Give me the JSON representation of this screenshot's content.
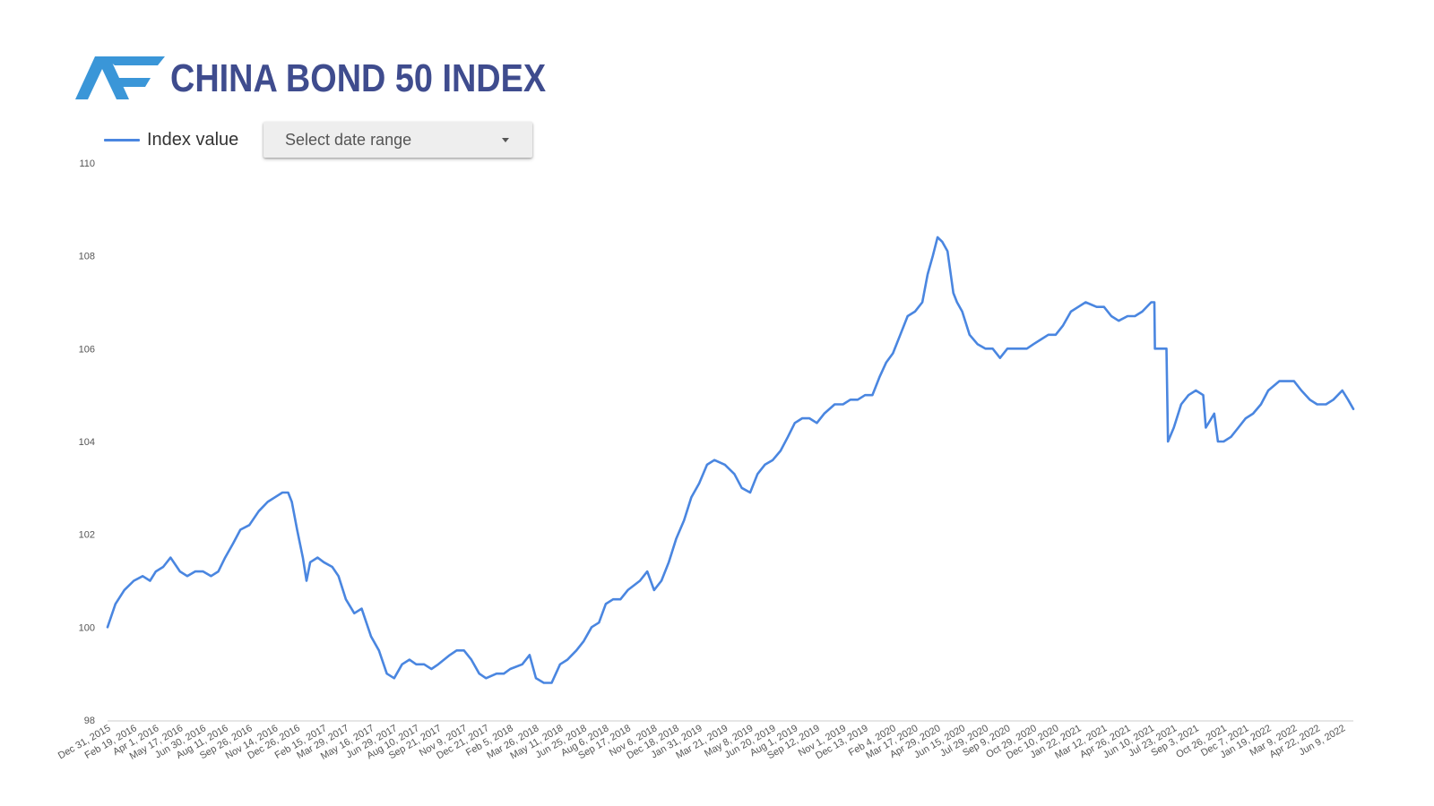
{
  "header": {
    "title": "CHINA BOND 50 INDEX",
    "title_color": "#3f4c8e",
    "logo_icon": "af-logo-icon",
    "logo_color": "#3a96d8"
  },
  "controls": {
    "date_range_label": "Select date range",
    "date_range_icon": "caret-down-icon"
  },
  "chart_data": {
    "type": "line",
    "legend_position": "top-left",
    "grid": false,
    "title": "",
    "xlabel": "",
    "ylabel": "",
    "ylim": [
      98,
      110
    ],
    "yticks": [
      "98",
      "100",
      "102",
      "104",
      "106",
      "108",
      "110"
    ],
    "xlim": [
      "2015-12-31",
      "2022-06-30"
    ],
    "xticks": [
      {
        "date": "2015-12-31",
        "label": "Dec 31, 2015"
      },
      {
        "date": "2016-02-19",
        "label": "Feb 19, 2016"
      },
      {
        "date": "2016-04-01",
        "label": "Apr 1, 2016"
      },
      {
        "date": "2016-05-17",
        "label": "May 17, 2016"
      },
      {
        "date": "2016-06-30",
        "label": "Jun 30, 2016"
      },
      {
        "date": "2016-08-11",
        "label": "Aug 11, 2016"
      },
      {
        "date": "2016-09-26",
        "label": "Sep 26, 2016"
      },
      {
        "date": "2016-11-14",
        "label": "Nov 14, 2016"
      },
      {
        "date": "2016-12-26",
        "label": "Dec 26, 2016"
      },
      {
        "date": "2017-02-15",
        "label": "Feb 15, 2017"
      },
      {
        "date": "2017-03-29",
        "label": "Mar 29, 2017"
      },
      {
        "date": "2017-05-16",
        "label": "May 16, 2017"
      },
      {
        "date": "2017-06-29",
        "label": "Jun 29, 2017"
      },
      {
        "date": "2017-08-10",
        "label": "Aug 10, 2017"
      },
      {
        "date": "2017-09-21",
        "label": "Sep 21, 2017"
      },
      {
        "date": "2017-11-09",
        "label": "Nov 9, 2017"
      },
      {
        "date": "2017-12-21",
        "label": "Dec 21, 2017"
      },
      {
        "date": "2018-02-05",
        "label": "Feb 5, 2018"
      },
      {
        "date": "2018-03-26",
        "label": "Mar 26, 2018"
      },
      {
        "date": "2018-05-11",
        "label": "May 11, 2018"
      },
      {
        "date": "2018-06-25",
        "label": "Jun 25, 2018"
      },
      {
        "date": "2018-08-06",
        "label": "Aug 6, 2018"
      },
      {
        "date": "2018-09-17",
        "label": "Sep 17, 2018"
      },
      {
        "date": "2018-11-06",
        "label": "Nov 6, 2018"
      },
      {
        "date": "2018-12-18",
        "label": "Dec 18, 2018"
      },
      {
        "date": "2019-01-31",
        "label": "Jan 31, 2019"
      },
      {
        "date": "2019-03-21",
        "label": "Mar 21, 2019"
      },
      {
        "date": "2019-05-08",
        "label": "May 8, 2019"
      },
      {
        "date": "2019-06-20",
        "label": "Jun 20, 2019"
      },
      {
        "date": "2019-08-01",
        "label": "Aug 1, 2019"
      },
      {
        "date": "2019-09-12",
        "label": "Sep 12, 2019"
      },
      {
        "date": "2019-11-01",
        "label": "Nov 1, 2019"
      },
      {
        "date": "2019-12-13",
        "label": "Dec 13, 2019"
      },
      {
        "date": "2020-02-04",
        "label": "Feb 4, 2020"
      },
      {
        "date": "2020-03-17",
        "label": "Mar 17, 2020"
      },
      {
        "date": "2020-04-29",
        "label": "Apr 29, 2020"
      },
      {
        "date": "2020-06-15",
        "label": "Jun 15, 2020"
      },
      {
        "date": "2020-07-29",
        "label": "Jul 29, 2020"
      },
      {
        "date": "2020-09-09",
        "label": "Sep 9, 2020"
      },
      {
        "date": "2020-10-29",
        "label": "Oct 29, 2020"
      },
      {
        "date": "2020-12-10",
        "label": "Dec 10, 2020"
      },
      {
        "date": "2021-01-22",
        "label": "Jan 22, 2021"
      },
      {
        "date": "2021-03-12",
        "label": "Mar 12, 2021"
      },
      {
        "date": "2021-04-26",
        "label": "Apr 26, 2021"
      },
      {
        "date": "2021-06-10",
        "label": "Jun 10, 2021"
      },
      {
        "date": "2021-07-23",
        "label": "Jul 23, 2021"
      },
      {
        "date": "2021-09-03",
        "label": "Sep 3, 2021"
      },
      {
        "date": "2021-10-26",
        "label": "Oct 26, 2021"
      },
      {
        "date": "2021-12-07",
        "label": "Dec 7, 2021"
      },
      {
        "date": "2022-01-19",
        "label": "Jan 19, 2022"
      },
      {
        "date": "2022-03-09",
        "label": "Mar 9, 2022"
      },
      {
        "date": "2022-04-22",
        "label": "Apr 22, 2022"
      },
      {
        "date": "2022-06-09",
        "label": "Jun 9, 2022"
      }
    ],
    "series": [
      {
        "name": "Index value",
        "color": "#4a86e0",
        "points": [
          [
            "2015-12-31",
            100.0
          ],
          [
            "2016-01-15",
            100.5
          ],
          [
            "2016-02-01",
            100.8
          ],
          [
            "2016-02-19",
            101.0
          ],
          [
            "2016-03-07",
            101.1
          ],
          [
            "2016-03-21",
            101.0
          ],
          [
            "2016-04-01",
            101.2
          ],
          [
            "2016-04-15",
            101.3
          ],
          [
            "2016-04-29",
            101.5
          ],
          [
            "2016-05-17",
            101.2
          ],
          [
            "2016-05-31",
            101.1
          ],
          [
            "2016-06-15",
            101.2
          ],
          [
            "2016-06-30",
            101.2
          ],
          [
            "2016-07-15",
            101.1
          ],
          [
            "2016-07-29",
            101.2
          ],
          [
            "2016-08-11",
            101.5
          ],
          [
            "2016-08-26",
            101.8
          ],
          [
            "2016-09-09",
            102.1
          ],
          [
            "2016-09-26",
            102.2
          ],
          [
            "2016-10-14",
            102.5
          ],
          [
            "2016-10-31",
            102.7
          ],
          [
            "2016-11-14",
            102.8
          ],
          [
            "2016-11-28",
            102.9
          ],
          [
            "2016-12-09",
            102.9
          ],
          [
            "2016-12-16",
            102.7
          ],
          [
            "2016-12-26",
            102.1
          ],
          [
            "2017-01-06",
            101.5
          ],
          [
            "2017-01-13",
            101.0
          ],
          [
            "2017-01-20",
            101.4
          ],
          [
            "2017-02-03",
            101.5
          ],
          [
            "2017-02-15",
            101.4
          ],
          [
            "2017-03-03",
            101.3
          ],
          [
            "2017-03-15",
            101.1
          ],
          [
            "2017-03-29",
            100.6
          ],
          [
            "2017-04-14",
            100.3
          ],
          [
            "2017-04-28",
            100.4
          ],
          [
            "2017-05-16",
            99.8
          ],
          [
            "2017-05-31",
            99.5
          ],
          [
            "2017-06-15",
            99.0
          ],
          [
            "2017-06-29",
            98.9
          ],
          [
            "2017-07-14",
            99.2
          ],
          [
            "2017-07-28",
            99.3
          ],
          [
            "2017-08-10",
            99.2
          ],
          [
            "2017-08-25",
            99.2
          ],
          [
            "2017-09-08",
            99.1
          ],
          [
            "2017-09-21",
            99.2
          ],
          [
            "2017-10-13",
            99.4
          ],
          [
            "2017-10-26",
            99.5
          ],
          [
            "2017-11-09",
            99.5
          ],
          [
            "2017-11-23",
            99.3
          ],
          [
            "2017-12-08",
            99.0
          ],
          [
            "2017-12-21",
            98.9
          ],
          [
            "2018-01-10",
            99.0
          ],
          [
            "2018-01-24",
            99.0
          ],
          [
            "2018-02-05",
            99.1
          ],
          [
            "2018-02-28",
            99.2
          ],
          [
            "2018-03-14",
            99.4
          ],
          [
            "2018-03-26",
            98.9
          ],
          [
            "2018-04-10",
            98.8
          ],
          [
            "2018-04-25",
            98.8
          ],
          [
            "2018-05-11",
            99.2
          ],
          [
            "2018-05-25",
            99.3
          ],
          [
            "2018-06-11",
            99.5
          ],
          [
            "2018-06-25",
            99.7
          ],
          [
            "2018-07-10",
            100.0
          ],
          [
            "2018-07-24",
            100.1
          ],
          [
            "2018-08-06",
            100.5
          ],
          [
            "2018-08-20",
            100.6
          ],
          [
            "2018-09-03",
            100.6
          ],
          [
            "2018-09-17",
            100.8
          ],
          [
            "2018-10-10",
            101.0
          ],
          [
            "2018-10-24",
            101.2
          ],
          [
            "2018-11-06",
            100.8
          ],
          [
            "2018-11-20",
            101.0
          ],
          [
            "2018-12-04",
            101.4
          ],
          [
            "2018-12-18",
            101.9
          ],
          [
            "2019-01-02",
            102.3
          ],
          [
            "2019-01-16",
            102.8
          ],
          [
            "2019-01-31",
            103.1
          ],
          [
            "2019-02-15",
            103.5
          ],
          [
            "2019-03-01",
            103.6
          ],
          [
            "2019-03-21",
            103.5
          ],
          [
            "2019-04-08",
            103.3
          ],
          [
            "2019-04-22",
            103.0
          ],
          [
            "2019-05-08",
            102.9
          ],
          [
            "2019-05-22",
            103.3
          ],
          [
            "2019-06-05",
            103.5
          ],
          [
            "2019-06-20",
            103.6
          ],
          [
            "2019-07-05",
            103.8
          ],
          [
            "2019-07-19",
            104.1
          ],
          [
            "2019-08-01",
            104.4
          ],
          [
            "2019-08-15",
            104.5
          ],
          [
            "2019-08-29",
            104.5
          ],
          [
            "2019-09-12",
            104.4
          ],
          [
            "2019-09-26",
            104.6
          ],
          [
            "2019-10-16",
            104.8
          ],
          [
            "2019-11-01",
            104.8
          ],
          [
            "2019-11-15",
            104.9
          ],
          [
            "2019-11-29",
            104.9
          ],
          [
            "2019-12-13",
            105.0
          ],
          [
            "2019-12-27",
            105.0
          ],
          [
            "2020-01-10",
            105.4
          ],
          [
            "2020-01-22",
            105.7
          ],
          [
            "2020-02-04",
            105.9
          ],
          [
            "2020-02-18",
            106.3
          ],
          [
            "2020-03-03",
            106.7
          ],
          [
            "2020-03-17",
            106.8
          ],
          [
            "2020-03-31",
            107.0
          ],
          [
            "2020-04-10",
            107.6
          ],
          [
            "2020-04-20",
            108.0
          ],
          [
            "2020-04-29",
            108.4
          ],
          [
            "2020-05-08",
            108.3
          ],
          [
            "2020-05-18",
            108.1
          ],
          [
            "2020-05-29",
            107.2
          ],
          [
            "2020-06-05",
            107.0
          ],
          [
            "2020-06-15",
            106.8
          ],
          [
            "2020-06-29",
            106.3
          ],
          [
            "2020-07-14",
            106.1
          ],
          [
            "2020-07-29",
            106.0
          ],
          [
            "2020-08-12",
            106.0
          ],
          [
            "2020-08-26",
            105.8
          ],
          [
            "2020-09-09",
            106.0
          ],
          [
            "2020-09-23",
            106.0
          ],
          [
            "2020-10-16",
            106.0
          ],
          [
            "2020-10-29",
            106.1
          ],
          [
            "2020-11-12",
            106.2
          ],
          [
            "2020-11-26",
            106.3
          ],
          [
            "2020-12-10",
            106.3
          ],
          [
            "2020-12-24",
            106.5
          ],
          [
            "2021-01-08",
            106.8
          ],
          [
            "2021-01-22",
            106.9
          ],
          [
            "2021-02-05",
            107.0
          ],
          [
            "2021-02-26",
            106.9
          ],
          [
            "2021-03-12",
            106.9
          ],
          [
            "2021-03-26",
            106.7
          ],
          [
            "2021-04-09",
            106.6
          ],
          [
            "2021-04-26",
            106.7
          ],
          [
            "2021-05-10",
            106.7
          ],
          [
            "2021-05-24",
            106.8
          ],
          [
            "2021-06-10",
            107.0
          ],
          [
            "2021-06-16",
            107.0
          ],
          [
            "2021-06-17",
            106.0
          ],
          [
            "2021-06-28",
            106.0
          ],
          [
            "2021-07-09",
            106.0
          ],
          [
            "2021-07-12",
            104.0
          ],
          [
            "2021-07-23",
            104.3
          ],
          [
            "2021-08-06",
            104.8
          ],
          [
            "2021-08-20",
            105.0
          ],
          [
            "2021-09-03",
            105.1
          ],
          [
            "2021-09-17",
            105.0
          ],
          [
            "2021-09-22",
            104.3
          ],
          [
            "2021-10-08",
            104.6
          ],
          [
            "2021-10-15",
            104.0
          ],
          [
            "2021-10-26",
            104.0
          ],
          [
            "2021-11-09",
            104.1
          ],
          [
            "2021-11-23",
            104.3
          ],
          [
            "2021-12-07",
            104.5
          ],
          [
            "2021-12-21",
            104.6
          ],
          [
            "2022-01-05",
            104.8
          ],
          [
            "2022-01-19",
            105.1
          ],
          [
            "2022-02-09",
            105.3
          ],
          [
            "2022-02-23",
            105.3
          ],
          [
            "2022-03-09",
            105.3
          ],
          [
            "2022-03-23",
            105.1
          ],
          [
            "2022-04-08",
            104.9
          ],
          [
            "2022-04-22",
            104.8
          ],
          [
            "2022-05-09",
            104.8
          ],
          [
            "2022-05-23",
            104.9
          ],
          [
            "2022-06-09",
            105.1
          ],
          [
            "2022-06-20",
            104.9
          ],
          [
            "2022-06-30",
            104.7
          ]
        ]
      }
    ]
  }
}
